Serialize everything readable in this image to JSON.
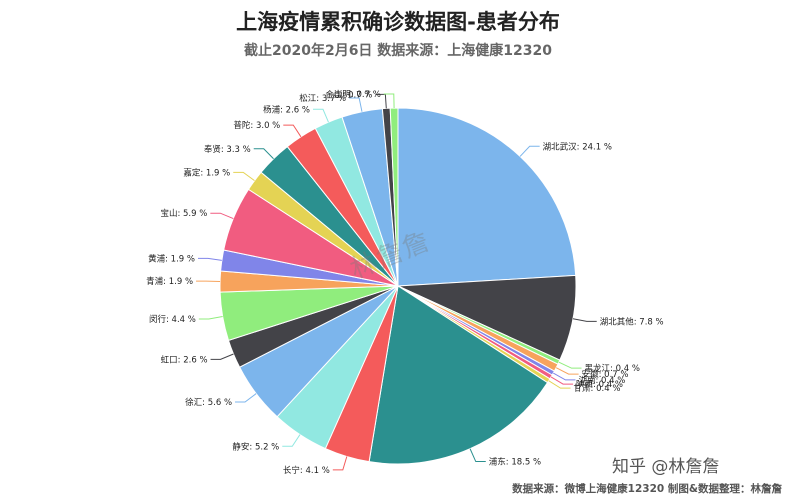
{
  "title": "上海疫情累积确诊数据图-患者分布",
  "subtitle": "截止2020年2月6日 数据来源：上海健康12320",
  "watermark": "林詹詹",
  "brand": "知乎 @林詹詹",
  "footer": "数据来源：微博上海健康12320 制图&数据整理：林詹詹",
  "chart_data": {
    "type": "pie",
    "title": "上海疫情累积确诊数据图-患者分布",
    "subtitle": "截止2020年2月6日 数据来源：上海健康12320",
    "unit": "%",
    "slices": [
      {
        "name": "湖北武汉",
        "value": 24.1,
        "label": "湖北武汉: 24.1 %",
        "color": "#7cb5ec"
      },
      {
        "name": "湖北其他",
        "value": 7.8,
        "label": "湖北其他: 7.8 %",
        "color": "#434348"
      },
      {
        "name": "黑龙江",
        "value": 0.4,
        "label": "黑龙江: 0.4 %",
        "color": "#90ed7d"
      },
      {
        "name": "安徽",
        "value": 0.7,
        "label": "安徽: 0.7 %",
        "color": "#f7a35c"
      },
      {
        "name": "湖南",
        "value": 0.4,
        "label": "湖南: 0.4 %",
        "color": "#8085e9"
      },
      {
        "name": "陕西",
        "value": 0.4,
        "label": "陕西: 0.4 %",
        "color": "#f15c80"
      },
      {
        "name": "甘肃",
        "value": 0.4,
        "label": "甘肃: 0.4 %",
        "color": "#e4d354"
      },
      {
        "name": "浦东",
        "value": 18.5,
        "label": "浦东: 18.5 %",
        "color": "#2b908f"
      },
      {
        "name": "长宁",
        "value": 4.1,
        "label": "长宁: 4.1 %",
        "color": "#f45b5b"
      },
      {
        "name": "静安",
        "value": 5.2,
        "label": "静安: 5.2 %",
        "color": "#91e8e1"
      },
      {
        "name": "徐汇",
        "value": 5.6,
        "label": "徐汇: 5.6 %",
        "color": "#7cb5ec"
      },
      {
        "name": "虹口",
        "value": 2.6,
        "label": "虹口: 2.6 %",
        "color": "#434348"
      },
      {
        "name": "闵行",
        "value": 4.4,
        "label": "闵行: 4.4 %",
        "color": "#90ed7d"
      },
      {
        "name": "青浦",
        "value": 1.9,
        "label": "青浦: 1.9 %",
        "color": "#f7a35c"
      },
      {
        "name": "黄浦",
        "value": 1.9,
        "label": "黄浦: 1.9 %",
        "color": "#8085e9"
      },
      {
        "name": "宝山",
        "value": 5.9,
        "label": "宝山: 5.9 %",
        "color": "#f15c80"
      },
      {
        "name": "嘉定",
        "value": 1.9,
        "label": "嘉定: 1.9 %",
        "color": "#e4d354"
      },
      {
        "name": "奉贤",
        "value": 3.3,
        "label": "奉贤: 3.3 %",
        "color": "#2b908f"
      },
      {
        "name": "普陀",
        "value": 3.0,
        "label": "普陀: 3.0 %",
        "color": "#f45b5b"
      },
      {
        "name": "杨浦",
        "value": 2.6,
        "label": "杨浦: 2.6 %",
        "color": "#91e8e1"
      },
      {
        "name": "松江",
        "value": 3.7,
        "label": "松江: 3.7 %",
        "color": "#7cb5ec"
      },
      {
        "name": "金山",
        "value": 0.7,
        "label": "金山: 0.7 %",
        "color": "#434348"
      },
      {
        "name": "崇明",
        "value": 0.7,
        "label": "崇明: 0.7 %",
        "color": "#90ed7d"
      }
    ]
  }
}
